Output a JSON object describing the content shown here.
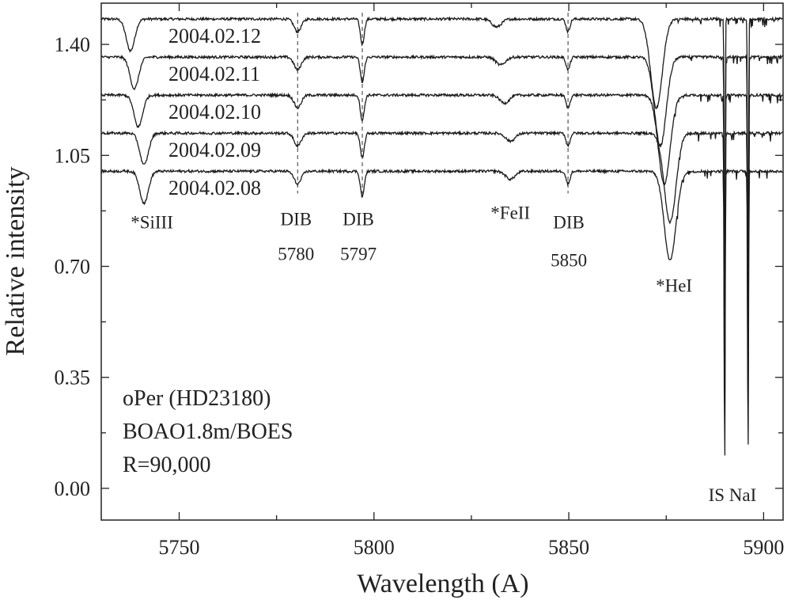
{
  "chart_data": {
    "type": "line",
    "xlabel": "Wavelength (A)",
    "ylabel": "Relative intensity",
    "xlim": [
      5730,
      5905
    ],
    "ylim": [
      -0.1,
      1.53
    ],
    "x_ticks": [
      5750,
      5800,
      5850,
      5900
    ],
    "y_ticks": [
      0.0,
      0.35,
      0.7,
      1.05,
      1.4
    ],
    "x_tick_labels": [
      "5750",
      "5800",
      "5850",
      "5900"
    ],
    "y_tick_labels": [
      "0.00",
      "0.35",
      "0.70",
      "1.05",
      "1.40"
    ],
    "grid": false,
    "series": [
      {
        "name": "2004.02.12",
        "continuum": 1.48,
        "shift": -3.5
      },
      {
        "name": "2004.02.11",
        "continuum": 1.36,
        "shift": -2.5
      },
      {
        "name": "2004.02.10",
        "continuum": 1.24,
        "shift": -1.5
      },
      {
        "name": "2004.02.09",
        "continuum": 1.12,
        "shift": 0.0
      },
      {
        "name": "2004.02.08",
        "continuum": 1.0,
        "shift": 0.0
      }
    ],
    "lines": [
      {
        "label": "*SiIII",
        "center": 5741.0,
        "depth": 0.1,
        "width": 1.1,
        "stellar": true
      },
      {
        "label": "DIB 5780",
        "center": 5780.4,
        "depth": 0.04,
        "width": 0.9,
        "stellar": false
      },
      {
        "label": "DIB 5797",
        "center": 5797.0,
        "depth": 0.08,
        "width": 0.5,
        "stellar": false
      },
      {
        "label": "*FeII",
        "center": 5835.0,
        "depth": 0.025,
        "width": 1.2,
        "stellar": true
      },
      {
        "label": "DIB 5850",
        "center": 5849.8,
        "depth": 0.04,
        "width": 0.5,
        "stellar": false
      },
      {
        "label": "*HeI",
        "center": 5876.0,
        "depth": 0.28,
        "width": 1.5,
        "stellar": true
      },
      {
        "label": "IS NaI D2",
        "center": 5890.0,
        "depth": 0.98,
        "width": 0.12,
        "stellar": false
      },
      {
        "label": "IS NaI D1",
        "center": 5896.0,
        "depth": 0.94,
        "width": 0.12,
        "stellar": false
      }
    ],
    "annotations": [
      {
        "text": "*SiIII",
        "x": 5743,
        "y": 0.84
      },
      {
        "text": "DIB",
        "x": 5780,
        "y": 0.85
      },
      {
        "text": "5780",
        "x": 5780,
        "y": 0.74
      },
      {
        "text": "DIB",
        "x": 5796,
        "y": 0.85
      },
      {
        "text": "5797",
        "x": 5796,
        "y": 0.74
      },
      {
        "text": "*FeII",
        "x": 5835,
        "y": 0.87
      },
      {
        "text": "DIB",
        "x": 5850,
        "y": 0.84
      },
      {
        "text": "5850",
        "x": 5850,
        "y": 0.72
      },
      {
        "text": "*HeI",
        "x": 5877,
        "y": 0.64
      },
      {
        "text": "IS NaI",
        "x": 5892,
        "y": -0.02
      }
    ],
    "info_text": [
      "oPer (HD23180)",
      "BOAO1.8m/BOES",
      "R=90,000"
    ]
  }
}
